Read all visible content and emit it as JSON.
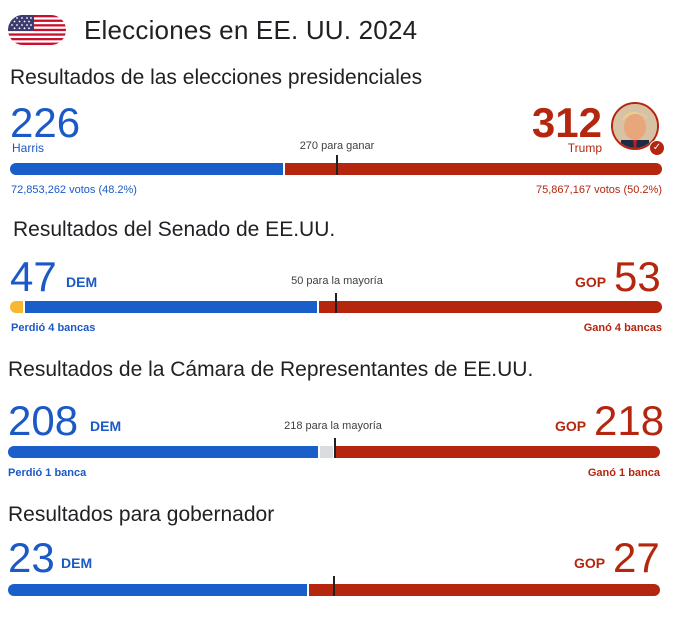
{
  "header": {
    "title": "Elecciones en EE. UU. 2024"
  },
  "colors": {
    "dem": "#1a59c6",
    "gop": "#b5260f",
    "other": "#f7b731",
    "undecided": "#dadce0"
  },
  "presidential": {
    "title": "Resultados de las elecciones presidenciales",
    "dem_count": "226",
    "dem_name": "Harris",
    "gop_count": "312",
    "gop_name": "Trump",
    "threshold_label": "270 para ganar",
    "dem_votes": "72,853,262 votos (48.2%)",
    "gop_votes": "75,867,167 votos (50.2%)",
    "total": 538,
    "dem_value": 226,
    "gop_value": 312,
    "threshold_value": 270,
    "winner_icon": "check-icon"
  },
  "senate": {
    "title": "Resultados del Senado de EE.UU.",
    "dem_count": "47",
    "dem_tag": "DEM",
    "gop_count": "53",
    "gop_tag": "GOP",
    "threshold_label": "50 para la mayoría",
    "dem_note": "Perdió 4 bancas",
    "gop_note": "Ganó 4 bancas",
    "total": 100,
    "other_value": 2,
    "dem_value": 45,
    "gop_value": 53,
    "threshold_value": 50
  },
  "house": {
    "title": "Resultados de la Cámara de Representantes de EE.UU.",
    "dem_count": "208",
    "dem_tag": "DEM",
    "gop_count": "218",
    "gop_tag": "GOP",
    "threshold_label": "218 para la mayoría",
    "dem_note": "Perdió 1 banca",
    "gop_note": "Ganó 1 banca",
    "total": 435,
    "dem_value": 208,
    "undecided_value": 9,
    "gop_value": 218,
    "threshold_value": 218
  },
  "governor": {
    "title": "Resultados para gobernador",
    "dem_count": "23",
    "dem_tag": "DEM",
    "gop_count": "27",
    "gop_tag": "GOP",
    "total": 50,
    "dem_value": 23,
    "gop_value": 27,
    "threshold_value": 25
  }
}
